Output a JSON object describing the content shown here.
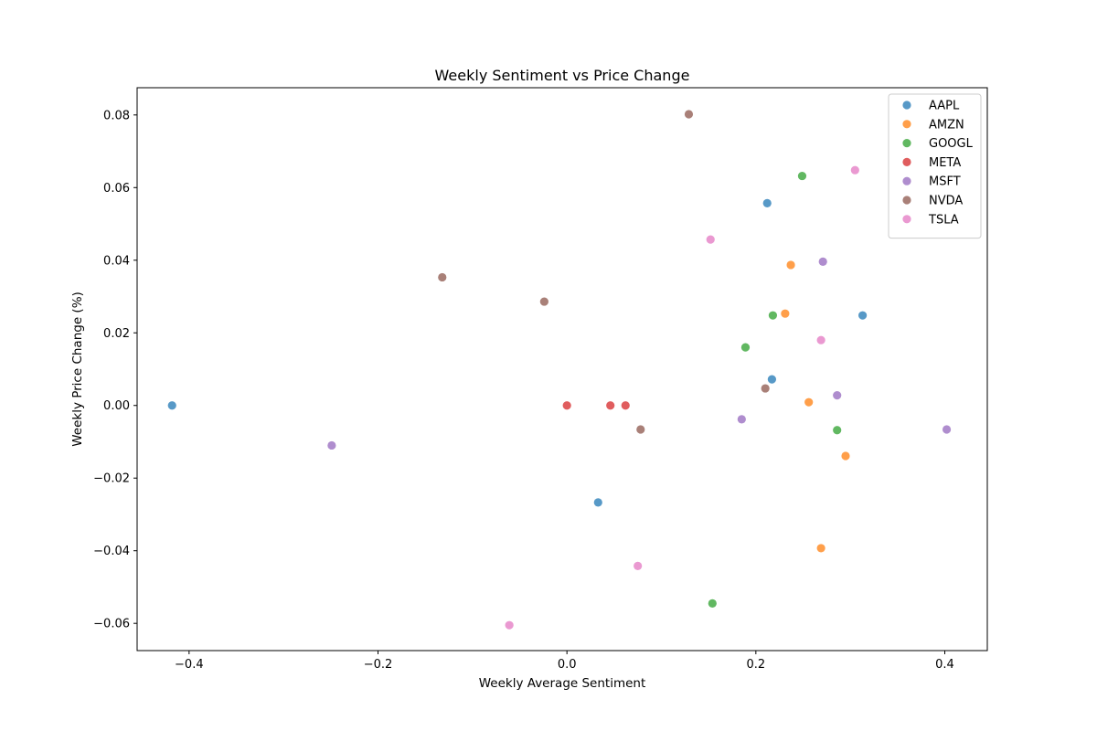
{
  "chart_data": {
    "type": "scatter",
    "title": "Weekly Sentiment vs Price Change",
    "xlabel": "Weekly Average Sentiment",
    "ylabel": "Weekly Price Change (%)",
    "xlim": [
      -0.455,
      0.445
    ],
    "ylim": [
      -0.0675,
      0.0875
    ],
    "xticks": [
      -0.4,
      -0.2,
      0.0,
      0.2,
      0.4
    ],
    "xtick_labels": [
      "−0.4",
      "−0.2",
      "0.0",
      "0.2",
      "0.4"
    ],
    "yticks": [
      -0.06,
      -0.04,
      -0.02,
      0.0,
      0.02,
      0.04,
      0.06,
      0.08
    ],
    "ytick_labels": [
      "−0.06",
      "−0.04",
      "−0.02",
      "0.00",
      "0.02",
      "0.04",
      "0.06",
      "0.08"
    ],
    "grid": false,
    "legend_position": "top-right",
    "series": [
      {
        "name": "AAPL",
        "color": "#1f77b4",
        "points": [
          [
            -0.418,
            0.0
          ],
          [
            0.033,
            -0.0267
          ],
          [
            0.212,
            0.0557
          ],
          [
            0.217,
            0.0072
          ],
          [
            0.313,
            0.0248
          ]
        ]
      },
      {
        "name": "AMZN",
        "color": "#ff7f0e",
        "points": [
          [
            0.231,
            0.0253
          ],
          [
            0.237,
            0.0387
          ],
          [
            0.256,
            0.0009
          ],
          [
            0.269,
            -0.0393
          ],
          [
            0.295,
            -0.0139
          ]
        ]
      },
      {
        "name": "GOOGL",
        "color": "#2ca02c",
        "points": [
          [
            0.154,
            -0.0545
          ],
          [
            0.189,
            0.016
          ],
          [
            0.218,
            0.0248
          ],
          [
            0.249,
            0.0632
          ],
          [
            0.286,
            -0.0068
          ]
        ]
      },
      {
        "name": "META",
        "color": "#d62728",
        "points": [
          [
            0.0,
            0.0
          ],
          [
            0.046,
            0.0
          ],
          [
            0.062,
            0.0
          ]
        ]
      },
      {
        "name": "MSFT",
        "color": "#9467bd",
        "points": [
          [
            -0.249,
            -0.011
          ],
          [
            0.185,
            -0.0038
          ],
          [
            0.271,
            0.0396
          ],
          [
            0.286,
            0.0028
          ],
          [
            0.402,
            -0.0066
          ]
        ]
      },
      {
        "name": "NVDA",
        "color": "#8c564b",
        "points": [
          [
            -0.132,
            0.0353
          ],
          [
            -0.024,
            0.0286
          ],
          [
            0.078,
            -0.0066
          ],
          [
            0.129,
            0.0802
          ],
          [
            0.21,
            0.0047
          ]
        ]
      },
      {
        "name": "TSLA",
        "color": "#e377c2",
        "points": [
          [
            -0.061,
            -0.0605
          ],
          [
            0.075,
            -0.0442
          ],
          [
            0.152,
            0.0457
          ],
          [
            0.269,
            0.018
          ],
          [
            0.305,
            0.0648
          ]
        ]
      }
    ]
  }
}
